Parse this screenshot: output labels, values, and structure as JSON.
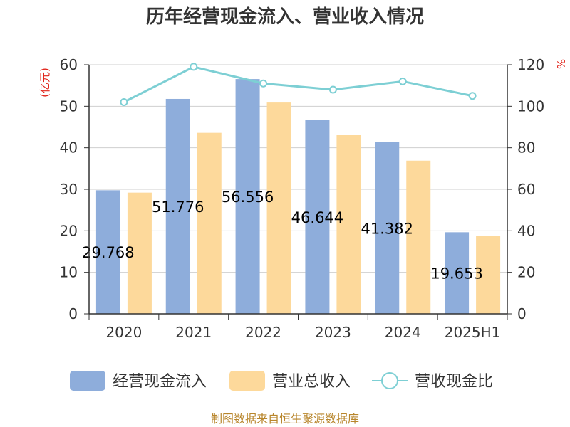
{
  "chart_data": {
    "type": "bar",
    "title": "历年经营现金流入、营业收入情况",
    "categories": [
      "2020",
      "2021",
      "2022",
      "2023",
      "2024",
      "2025H1"
    ],
    "y_left": {
      "unit_label": "(亿元)",
      "ylim": [
        0,
        60
      ],
      "ticks": [
        "0",
        "10",
        "20",
        "30",
        "40",
        "50",
        "60"
      ]
    },
    "y_right": {
      "unit_label": "%",
      "ylim": [
        0,
        120
      ],
      "ticks": [
        "0",
        "20",
        "40",
        "60",
        "80",
        "100",
        "120"
      ]
    },
    "grid": true,
    "legend_position": "bottom",
    "series": [
      {
        "name": "经营现金流入",
        "kind": "bar",
        "axis": "left",
        "color": "#8eaddb",
        "values": [
          29.768,
          51.776,
          56.556,
          46.644,
          41.382,
          19.653
        ],
        "labels": [
          "29.768",
          "51.776",
          "56.556",
          "46.644",
          "41.382",
          "19.653"
        ]
      },
      {
        "name": "营业总收入",
        "kind": "bar",
        "axis": "left",
        "color": "#fdd99b",
        "values": [
          29.2,
          43.6,
          50.9,
          43.1,
          36.9,
          18.7
        ]
      },
      {
        "name": "营收现金比",
        "kind": "line",
        "axis": "right",
        "color": "#7dcfd4",
        "values": [
          102,
          119,
          111,
          108,
          112,
          105
        ]
      }
    ]
  },
  "source_note": "制图数据来自恒生聚源数据库"
}
